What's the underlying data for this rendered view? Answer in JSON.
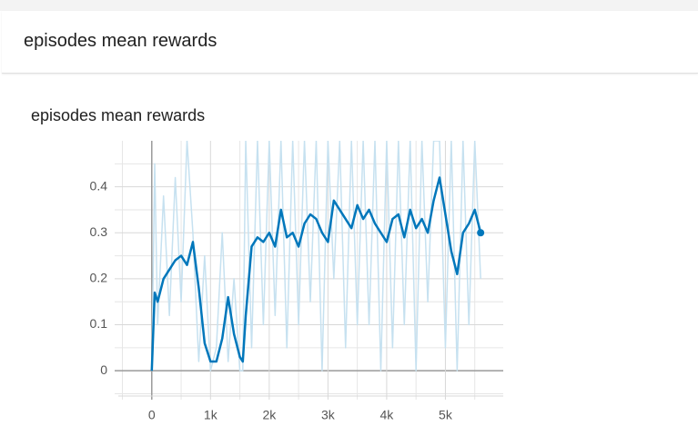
{
  "header": {
    "title": "episodes mean rewards"
  },
  "chart_data": {
    "type": "line",
    "title": "episodes mean rewards",
    "x": [
      0,
      50,
      100,
      200,
      300,
      400,
      500,
      600,
      700,
      800,
      900,
      1000,
      1100,
      1200,
      1300,
      1400,
      1500,
      1550,
      1600,
      1700,
      1800,
      1900,
      2000,
      2100,
      2200,
      2300,
      2400,
      2500,
      2600,
      2700,
      2800,
      2900,
      3000,
      3100,
      3200,
      3300,
      3400,
      3500,
      3600,
      3700,
      3800,
      3900,
      4000,
      4100,
      4200,
      4300,
      4400,
      4500,
      4600,
      4700,
      4800,
      4900,
      5000,
      5100,
      5200,
      5300,
      5400,
      5500,
      5600
    ],
    "series": [
      {
        "color": "#c6e1f0",
        "values": [
          0,
          0.45,
          0.1,
          0.38,
          0.12,
          0.42,
          0.15,
          0.5,
          0.3,
          0.02,
          0.25,
          0,
          0.05,
          0.3,
          0.02,
          0.2,
          0,
          0,
          0.5,
          0.05,
          0.5,
          0.1,
          0.5,
          0.12,
          0.5,
          0.05,
          0.5,
          0.1,
          0.5,
          0.15,
          0.5,
          0,
          0.5,
          0.2,
          0.5,
          0.05,
          0.5,
          0.1,
          0.5,
          0.1,
          0.5,
          0,
          0.5,
          0.05,
          0.5,
          0.1,
          0.5,
          0,
          0.5,
          0.15,
          0.5,
          0.5,
          0.05,
          0.5,
          0,
          0.5,
          0.1,
          0.5,
          0.2
        ]
      },
      {
        "color": "#0077bb",
        "values": [
          0,
          0.17,
          0.15,
          0.2,
          0.22,
          0.24,
          0.25,
          0.23,
          0.28,
          0.18,
          0.06,
          0.02,
          0.02,
          0.07,
          0.16,
          0.08,
          0.03,
          0.02,
          0.12,
          0.27,
          0.29,
          0.28,
          0.3,
          0.27,
          0.35,
          0.29,
          0.3,
          0.27,
          0.32,
          0.34,
          0.33,
          0.3,
          0.28,
          0.37,
          0.35,
          0.33,
          0.31,
          0.36,
          0.33,
          0.35,
          0.32,
          0.3,
          0.28,
          0.33,
          0.34,
          0.29,
          0.35,
          0.31,
          0.33,
          0.3,
          0.37,
          0.42,
          0.34,
          0.26,
          0.21,
          0.3,
          0.32,
          0.35,
          0.3
        ]
      }
    ],
    "xlim": [
      -570,
      5985
    ],
    "ylim": [
      -0.055,
      0.5
    ],
    "xticks": [
      0,
      {
        "value": 1000,
        "label": "1k"
      },
      {
        "value": 2000,
        "label": "2k"
      },
      {
        "value": 3000,
        "label": "3k"
      },
      {
        "value": 4000,
        "label": "4k"
      },
      {
        "value": 5000,
        "label": "5k"
      }
    ],
    "yticks": [
      0,
      0.1,
      0.2,
      0.3,
      0.4
    ],
    "xminorticks": [
      -500,
      500,
      1500,
      2500,
      3500,
      4500,
      5500
    ],
    "yminorticks": [
      -0.05,
      0.05,
      0.15,
      0.25,
      0.35,
      0.45
    ],
    "grid": true
  }
}
